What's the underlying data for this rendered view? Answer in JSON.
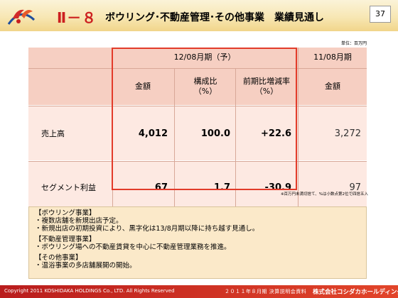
{
  "header": {
    "section_number": "Ⅱ－８",
    "title": "ボウリング･不動産管理･その他事業　業績見通し",
    "page_number": "37"
  },
  "unit_note": "単位：百万円",
  "table": {
    "forecast_group_label": "12/08月期（予）",
    "prior_year_label": "11/08月期",
    "columns": {
      "amount": "金額",
      "composition": "構成比\n（%）",
      "yoy_change": "前期比増減率\n（%）",
      "prior_amount": "金額"
    },
    "rows": [
      {
        "label": "売上高",
        "amount": "4,012",
        "composition": "100.0",
        "yoy_change": "+22.6",
        "prior_amount": "3,272"
      },
      {
        "label": "セグメント利益",
        "amount": "67",
        "composition": "1.7",
        "yoy_change": "-30.9",
        "prior_amount": "97"
      }
    ]
  },
  "footnote": "※百万円未満切捨て、%は小数点第2位で四捨五入",
  "info": {
    "lines": [
      "【ボウリング事業】",
      "・複数店舗を新規出店予定。",
      "・新規出店の初期投資により、黒字化は13/8月期以降に持ち越す見通し。",
      "",
      "【不動産管理事業】",
      "・ボウリング場への不動産賃貸を中心に不動産管理業務を推進。",
      "",
      "【その他事業】",
      "・温浴事業の多店舗展開の開始。"
    ]
  },
  "footer": {
    "copyright": "Copyright 2011 KOSHIDAKA HOLDINGS Co., LTD. All Rights Reserved",
    "document": "２０１１年８月期 決算説明会資料",
    "company": "株式会社コシダカホールディングス"
  },
  "colors": {
    "accent_red": "#cc1f1f",
    "highlight_border": "#e23b2a",
    "table_header": "#f6cfc2",
    "table_body": "#fde9e2",
    "info_box": "#fbe9c9"
  }
}
